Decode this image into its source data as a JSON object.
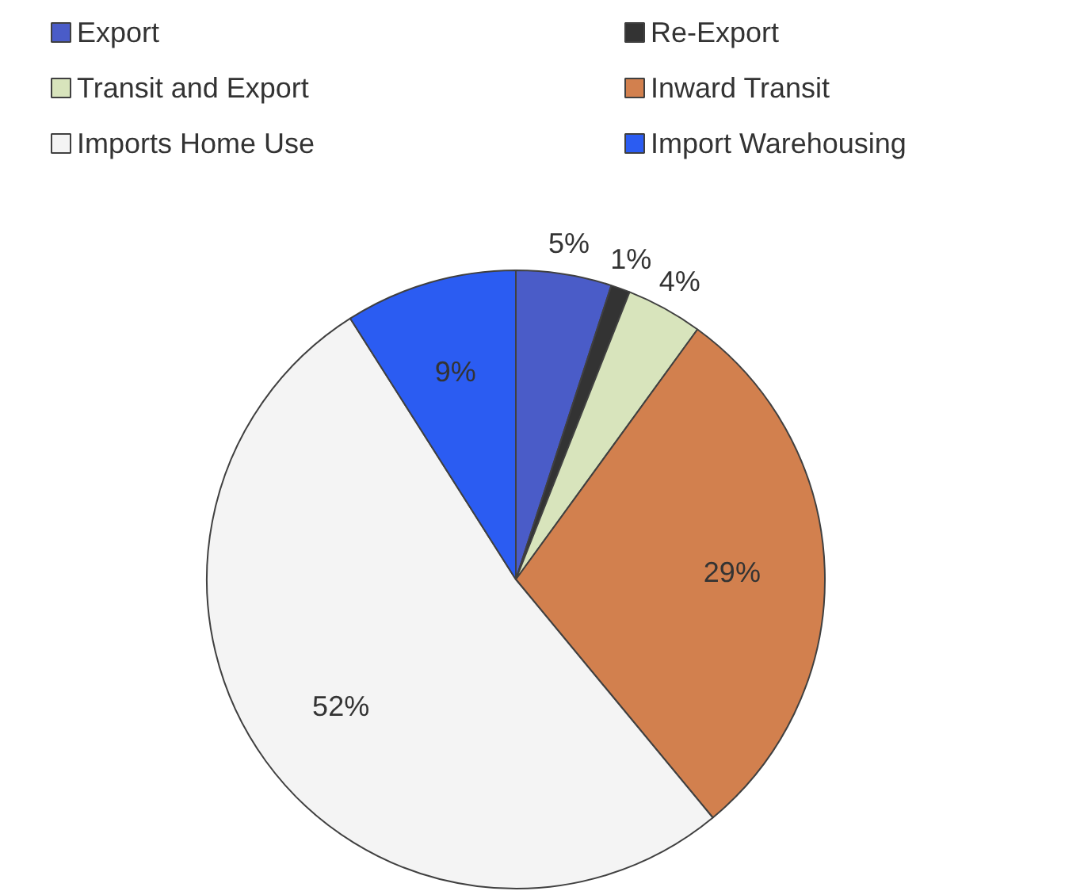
{
  "chart_data": {
    "type": "pie",
    "categories": [
      "Export",
      "Re-Export",
      "Transit and Export",
      "Inward Transit",
      "Imports Home Use",
      "Import Warehousing"
    ],
    "values": [
      5,
      1,
      4,
      29,
      52,
      9
    ],
    "value_labels": [
      "5%",
      "1%",
      "4%",
      "29%",
      "52%",
      "9%"
    ],
    "colors": [
      "#4a5cc8",
      "#333333",
      "#d8e4bc",
      "#d2804e",
      "#f4f4f4",
      "#2b5cf2"
    ],
    "legend": "top"
  }
}
